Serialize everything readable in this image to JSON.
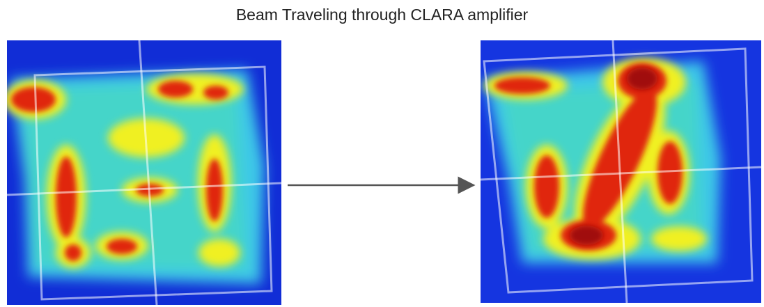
{
  "title": "Beam Traveling through CLARA amplifier"
}
